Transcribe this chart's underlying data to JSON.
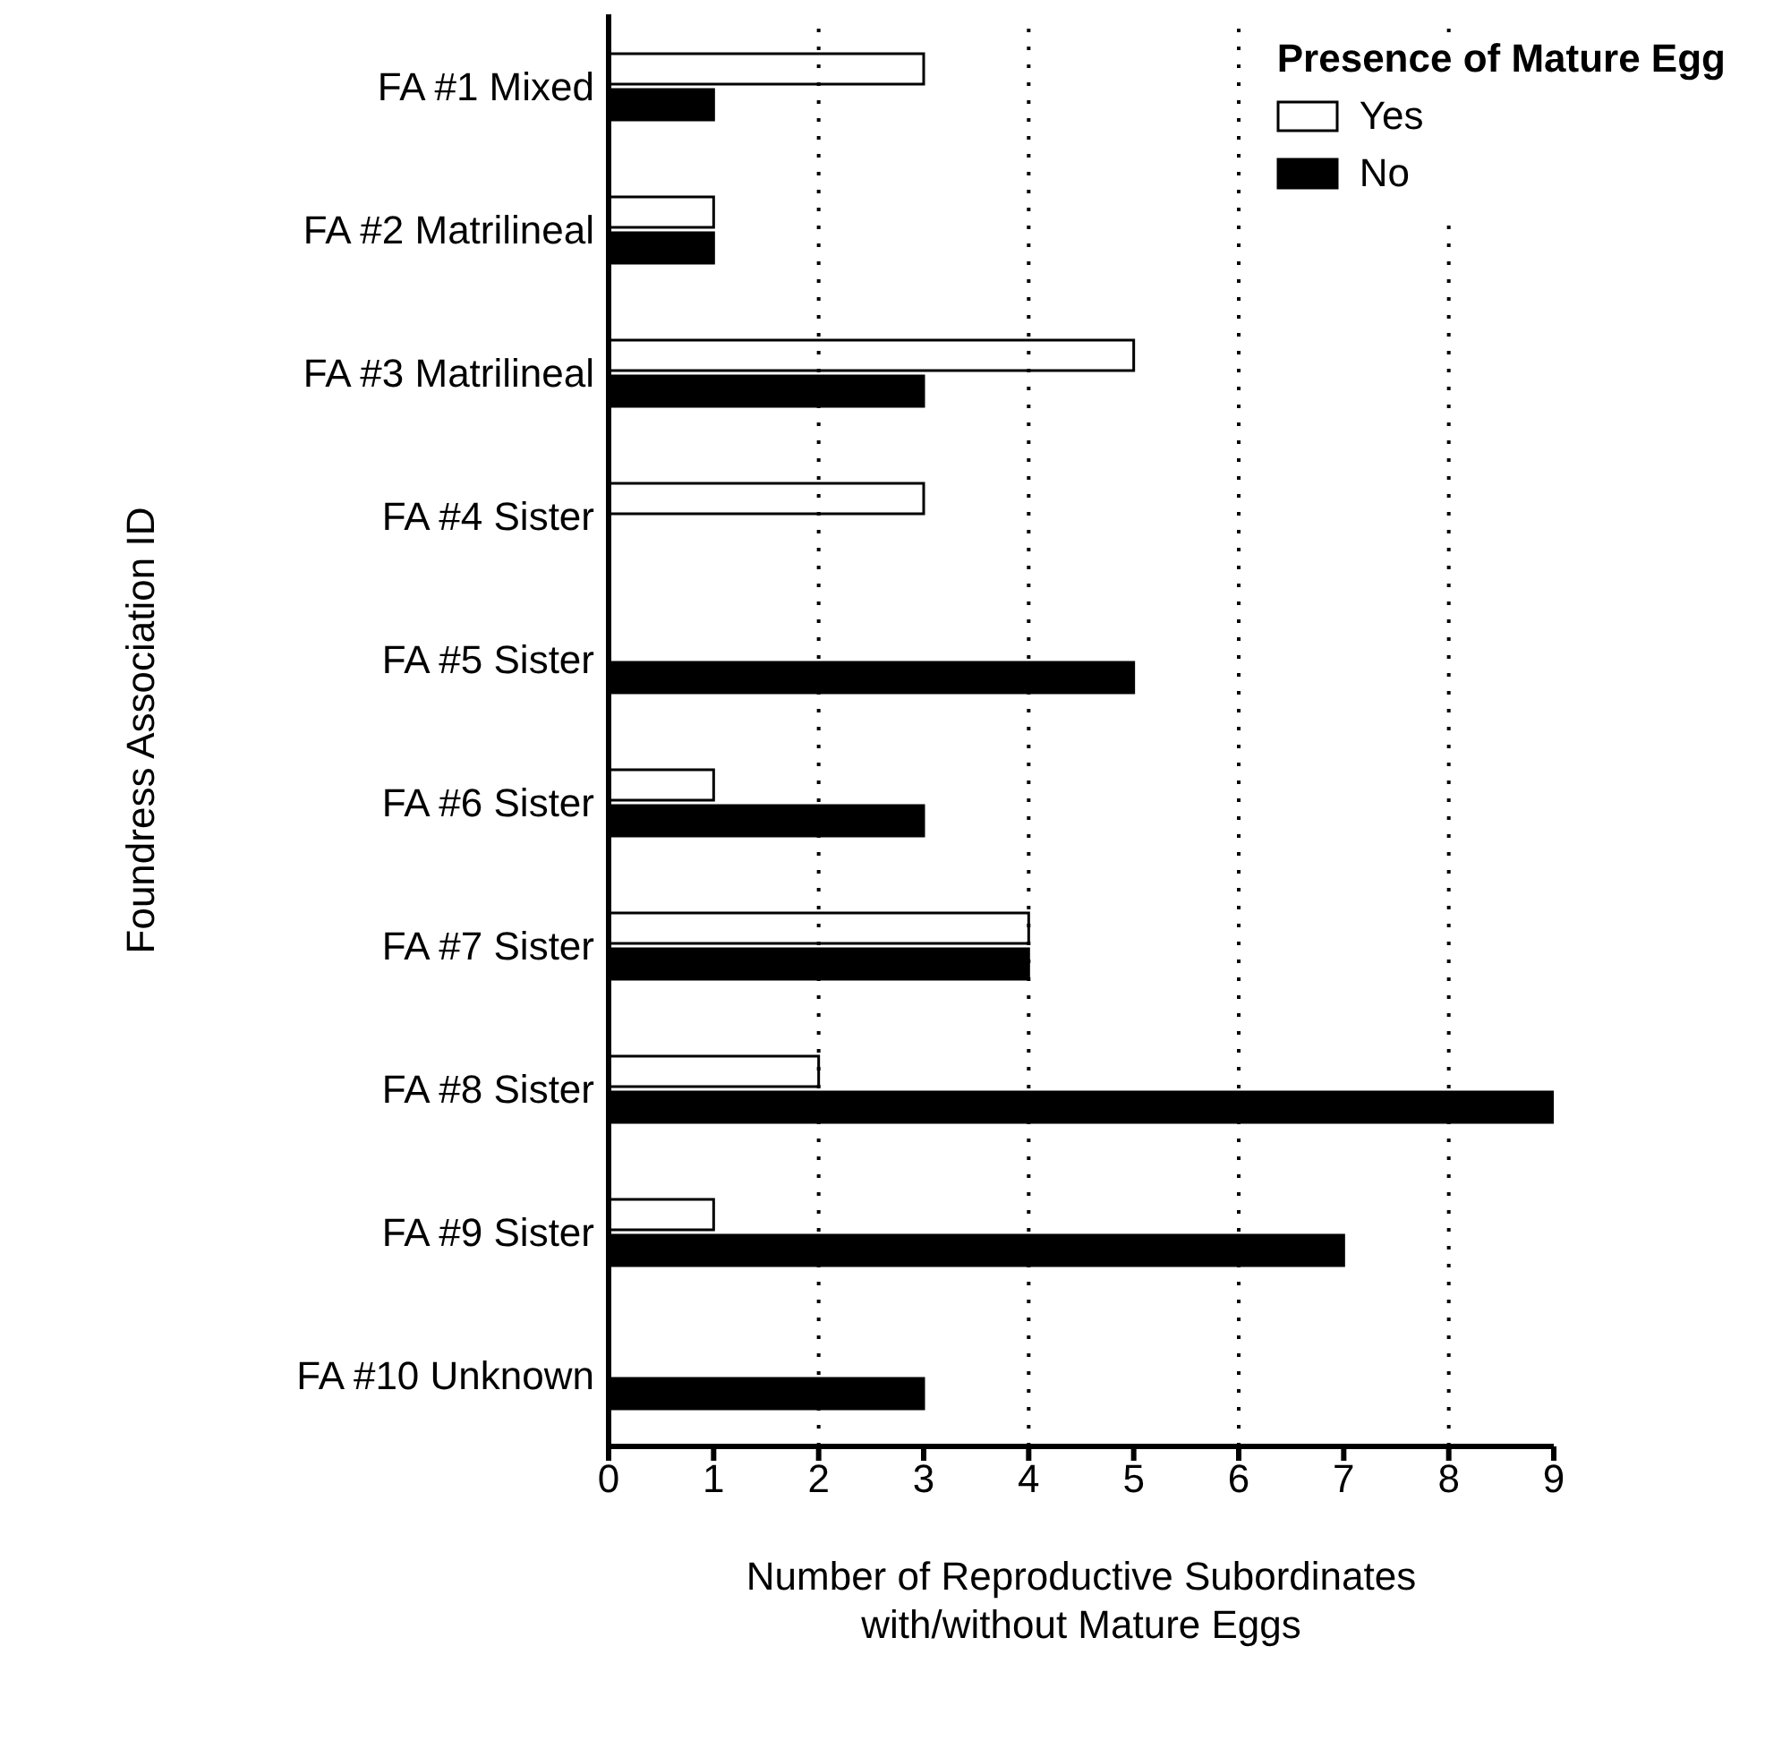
{
  "chart_data": {
    "type": "bar",
    "orientation": "horizontal",
    "xlabel": "Number of Reproductive Subordinates\nwith/without Mature Eggs",
    "ylabel": "Foundress Association ID",
    "legend_title": "Presence of Mature Egg",
    "legend": "top right",
    "categories": [
      "FA #1 Mixed",
      "FA #2 Matrilineal",
      "FA #3 Matrilineal",
      "FA #4 Sister",
      "FA #5 Sister",
      "FA #6 Sister",
      "FA #7 Sister",
      "FA #8 Sister",
      "FA #9 Sister",
      "FA #10 Unknown"
    ],
    "series": [
      {
        "name": "Yes",
        "color": "#ffffff",
        "values": [
          3,
          1,
          5,
          3,
          0,
          1,
          4,
          2,
          1,
          0
        ]
      },
      {
        "name": "No",
        "color": "#000000",
        "values": [
          1,
          1,
          3,
          0,
          5,
          3,
          4,
          9,
          7,
          3
        ]
      }
    ],
    "xlim": [
      0,
      9
    ],
    "xticks": [
      0,
      1,
      2,
      3,
      4,
      5,
      6,
      7,
      8,
      9
    ],
    "ref_lines": [
      {
        "axis": "x",
        "value": 2,
        "color": "#000000",
        "line_style": "dotted"
      },
      {
        "axis": "x",
        "value": 4,
        "color": "#000000",
        "line_style": "dotted"
      },
      {
        "axis": "x",
        "value": 6,
        "color": "#000000",
        "line_style": "dotted"
      },
      {
        "axis": "x",
        "value": 8,
        "color": "#000000",
        "line_style": "dotted"
      }
    ]
  }
}
